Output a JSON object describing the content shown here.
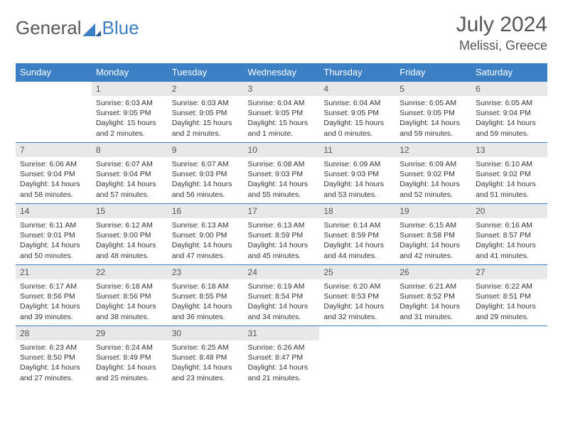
{
  "brand": {
    "part1": "General",
    "part2": "Blue"
  },
  "title": "July 2024",
  "location": "Melissi, Greece",
  "colors": {
    "header_bg": "#3b7fc4",
    "header_text": "#ffffff",
    "daynum_bg": "#e8e8e8",
    "border": "#3b7fc4",
    "text": "#333333",
    "title_text": "#555555"
  },
  "weekdays": [
    "Sunday",
    "Monday",
    "Tuesday",
    "Wednesday",
    "Thursday",
    "Friday",
    "Saturday"
  ],
  "weeks": [
    [
      null,
      {
        "n": "1",
        "sr": "Sunrise: 6:03 AM",
        "ss": "Sunset: 9:05 PM",
        "d1": "Daylight: 15 hours",
        "d2": "and 2 minutes."
      },
      {
        "n": "2",
        "sr": "Sunrise: 6:03 AM",
        "ss": "Sunset: 9:05 PM",
        "d1": "Daylight: 15 hours",
        "d2": "and 2 minutes."
      },
      {
        "n": "3",
        "sr": "Sunrise: 6:04 AM",
        "ss": "Sunset: 9:05 PM",
        "d1": "Daylight: 15 hours",
        "d2": "and 1 minute."
      },
      {
        "n": "4",
        "sr": "Sunrise: 6:04 AM",
        "ss": "Sunset: 9:05 PM",
        "d1": "Daylight: 15 hours",
        "d2": "and 0 minutes."
      },
      {
        "n": "5",
        "sr": "Sunrise: 6:05 AM",
        "ss": "Sunset: 9:05 PM",
        "d1": "Daylight: 14 hours",
        "d2": "and 59 minutes."
      },
      {
        "n": "6",
        "sr": "Sunrise: 6:05 AM",
        "ss": "Sunset: 9:04 PM",
        "d1": "Daylight: 14 hours",
        "d2": "and 59 minutes."
      }
    ],
    [
      {
        "n": "7",
        "sr": "Sunrise: 6:06 AM",
        "ss": "Sunset: 9:04 PM",
        "d1": "Daylight: 14 hours",
        "d2": "and 58 minutes."
      },
      {
        "n": "8",
        "sr": "Sunrise: 6:07 AM",
        "ss": "Sunset: 9:04 PM",
        "d1": "Daylight: 14 hours",
        "d2": "and 57 minutes."
      },
      {
        "n": "9",
        "sr": "Sunrise: 6:07 AM",
        "ss": "Sunset: 9:03 PM",
        "d1": "Daylight: 14 hours",
        "d2": "and 56 minutes."
      },
      {
        "n": "10",
        "sr": "Sunrise: 6:08 AM",
        "ss": "Sunset: 9:03 PM",
        "d1": "Daylight: 14 hours",
        "d2": "and 55 minutes."
      },
      {
        "n": "11",
        "sr": "Sunrise: 6:09 AM",
        "ss": "Sunset: 9:03 PM",
        "d1": "Daylight: 14 hours",
        "d2": "and 53 minutes."
      },
      {
        "n": "12",
        "sr": "Sunrise: 6:09 AM",
        "ss": "Sunset: 9:02 PM",
        "d1": "Daylight: 14 hours",
        "d2": "and 52 minutes."
      },
      {
        "n": "13",
        "sr": "Sunrise: 6:10 AM",
        "ss": "Sunset: 9:02 PM",
        "d1": "Daylight: 14 hours",
        "d2": "and 51 minutes."
      }
    ],
    [
      {
        "n": "14",
        "sr": "Sunrise: 6:11 AM",
        "ss": "Sunset: 9:01 PM",
        "d1": "Daylight: 14 hours",
        "d2": "and 50 minutes."
      },
      {
        "n": "15",
        "sr": "Sunrise: 6:12 AM",
        "ss": "Sunset: 9:00 PM",
        "d1": "Daylight: 14 hours",
        "d2": "and 48 minutes."
      },
      {
        "n": "16",
        "sr": "Sunrise: 6:13 AM",
        "ss": "Sunset: 9:00 PM",
        "d1": "Daylight: 14 hours",
        "d2": "and 47 minutes."
      },
      {
        "n": "17",
        "sr": "Sunrise: 6:13 AM",
        "ss": "Sunset: 8:59 PM",
        "d1": "Daylight: 14 hours",
        "d2": "and 45 minutes."
      },
      {
        "n": "18",
        "sr": "Sunrise: 6:14 AM",
        "ss": "Sunset: 8:59 PM",
        "d1": "Daylight: 14 hours",
        "d2": "and 44 minutes."
      },
      {
        "n": "19",
        "sr": "Sunrise: 6:15 AM",
        "ss": "Sunset: 8:58 PM",
        "d1": "Daylight: 14 hours",
        "d2": "and 42 minutes."
      },
      {
        "n": "20",
        "sr": "Sunrise: 6:16 AM",
        "ss": "Sunset: 8:57 PM",
        "d1": "Daylight: 14 hours",
        "d2": "and 41 minutes."
      }
    ],
    [
      {
        "n": "21",
        "sr": "Sunrise: 6:17 AM",
        "ss": "Sunset: 8:56 PM",
        "d1": "Daylight: 14 hours",
        "d2": "and 39 minutes."
      },
      {
        "n": "22",
        "sr": "Sunrise: 6:18 AM",
        "ss": "Sunset: 8:56 PM",
        "d1": "Daylight: 14 hours",
        "d2": "and 38 minutes."
      },
      {
        "n": "23",
        "sr": "Sunrise: 6:18 AM",
        "ss": "Sunset: 8:55 PM",
        "d1": "Daylight: 14 hours",
        "d2": "and 36 minutes."
      },
      {
        "n": "24",
        "sr": "Sunrise: 6:19 AM",
        "ss": "Sunset: 8:54 PM",
        "d1": "Daylight: 14 hours",
        "d2": "and 34 minutes."
      },
      {
        "n": "25",
        "sr": "Sunrise: 6:20 AM",
        "ss": "Sunset: 8:53 PM",
        "d1": "Daylight: 14 hours",
        "d2": "and 32 minutes."
      },
      {
        "n": "26",
        "sr": "Sunrise: 6:21 AM",
        "ss": "Sunset: 8:52 PM",
        "d1": "Daylight: 14 hours",
        "d2": "and 31 minutes."
      },
      {
        "n": "27",
        "sr": "Sunrise: 6:22 AM",
        "ss": "Sunset: 8:51 PM",
        "d1": "Daylight: 14 hours",
        "d2": "and 29 minutes."
      }
    ],
    [
      {
        "n": "28",
        "sr": "Sunrise: 6:23 AM",
        "ss": "Sunset: 8:50 PM",
        "d1": "Daylight: 14 hours",
        "d2": "and 27 minutes."
      },
      {
        "n": "29",
        "sr": "Sunrise: 6:24 AM",
        "ss": "Sunset: 8:49 PM",
        "d1": "Daylight: 14 hours",
        "d2": "and 25 minutes."
      },
      {
        "n": "30",
        "sr": "Sunrise: 6:25 AM",
        "ss": "Sunset: 8:48 PM",
        "d1": "Daylight: 14 hours",
        "d2": "and 23 minutes."
      },
      {
        "n": "31",
        "sr": "Sunrise: 6:26 AM",
        "ss": "Sunset: 8:47 PM",
        "d1": "Daylight: 14 hours",
        "d2": "and 21 minutes."
      },
      null,
      null,
      null
    ]
  ]
}
